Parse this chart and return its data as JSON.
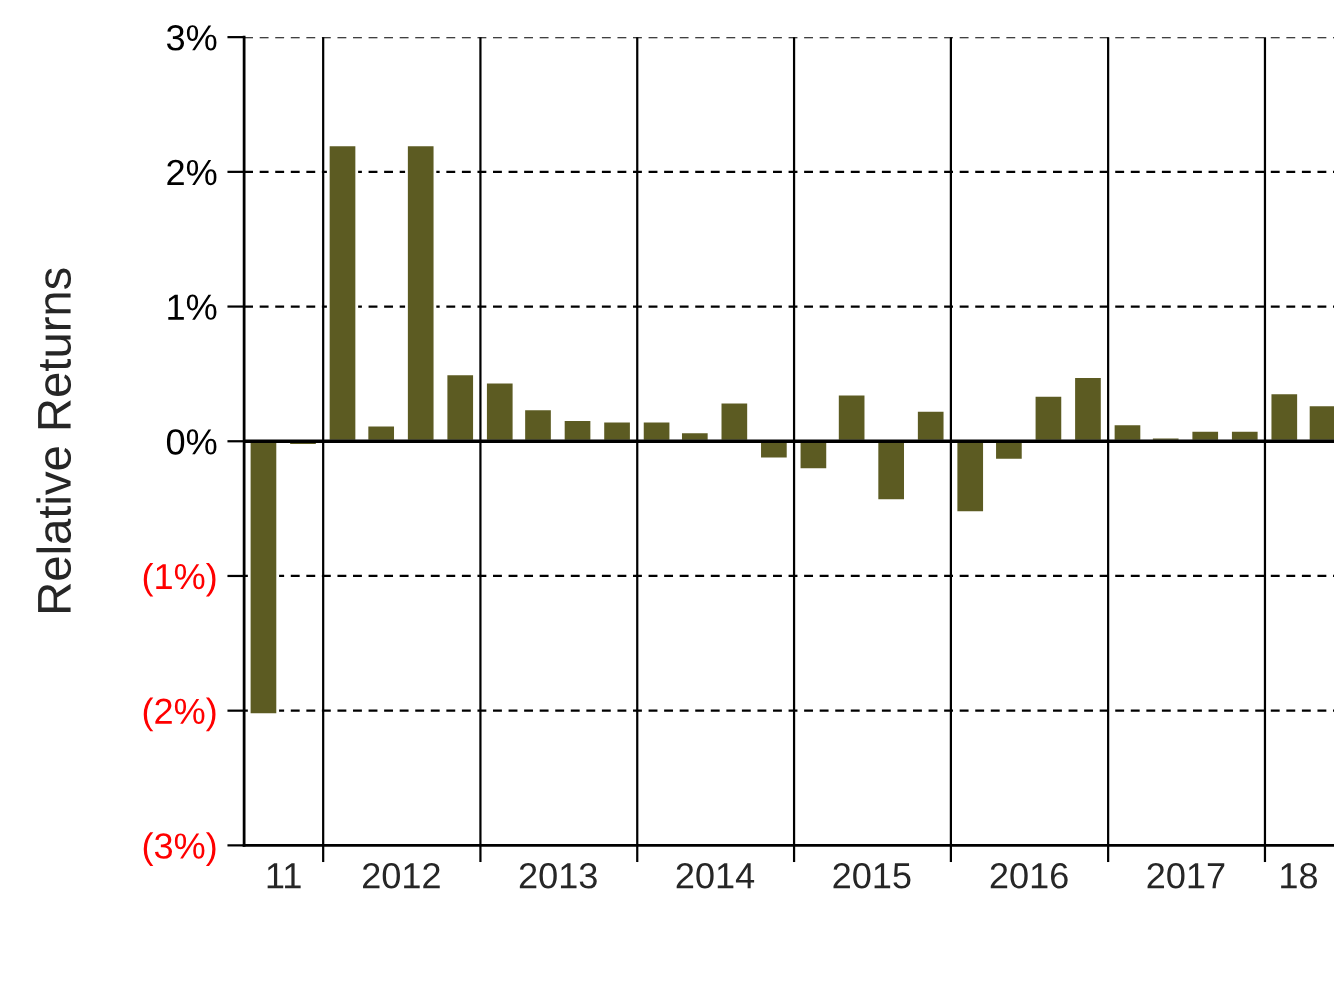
{
  "chart_data": {
    "type": "bar",
    "ylabel": "Relative Returns",
    "x": [
      "2011-08-15",
      "2011-11-15",
      "2012-02-15",
      "2012-05-15",
      "2012-08-15",
      "2012-11-15",
      "2013-02-15",
      "2013-05-15",
      "2013-08-15",
      "2013-11-15",
      "2014-02-15",
      "2014-05-15",
      "2014-08-15",
      "2014-11-15",
      "2015-02-15",
      "2015-05-15",
      "2015-08-15",
      "2015-11-15",
      "2016-02-15",
      "2016-05-15",
      "2016-08-15",
      "2016-11-15",
      "2017-02-15",
      "2017-05-15",
      "2017-08-15",
      "2017-11-15",
      "2018-02-15",
      "2018-05-15"
    ],
    "values": [
      -2.03,
      -0.03,
      2.2,
      0.12,
      2.2,
      0.5,
      0.44,
      0.24,
      0.16,
      0.15,
      0.15,
      0.07,
      0.29,
      -0.13,
      -0.21,
      0.35,
      -0.44,
      0.23,
      -0.53,
      -0.14,
      0.34,
      0.48,
      0.13,
      0.03,
      0.08,
      0.08,
      0.36,
      0.27
    ],
    "color": "#5c5b22",
    "xlim": [
      "2011-07-01",
      "2018-06-20"
    ],
    "xticks": [
      {
        "value": "2011-10-01",
        "label": "11"
      },
      {
        "value": "2012-01-01",
        "label": null
      },
      {
        "value": "2012-07-01",
        "label": "2012"
      },
      {
        "value": "2013-01-01",
        "label": null
      },
      {
        "value": "2013-07-01",
        "label": "2013"
      },
      {
        "value": "2014-01-01",
        "label": null
      },
      {
        "value": "2014-07-01",
        "label": "2014"
      },
      {
        "value": "2015-01-01",
        "label": null
      },
      {
        "value": "2015-07-01",
        "label": "2015"
      },
      {
        "value": "2016-01-01",
        "label": null
      },
      {
        "value": "2016-07-01",
        "label": "2016"
      },
      {
        "value": "2017-01-01",
        "label": null
      },
      {
        "value": "2017-07-01",
        "label": "2017"
      },
      {
        "value": "2018-01-01",
        "label": null
      },
      {
        "value": "2018-03-20",
        "label": "18"
      }
    ],
    "ylim": [
      -3,
      3
    ],
    "yticks": [
      {
        "value": -3,
        "label": "(3%)"
      },
      {
        "value": -2,
        "label": "(2%)"
      },
      {
        "value": -1,
        "label": "(1%)"
      },
      {
        "value": 0,
        "label": "0%"
      },
      {
        "value": 1,
        "label": "1%"
      },
      {
        "value": 2,
        "label": "2%"
      },
      {
        "value": 3,
        "label": "3%"
      }
    ],
    "ref_lines": [
      {
        "axis": "y",
        "value": 0,
        "color": "#000000",
        "line_style": "solid"
      }
    ],
    "grid": true
  }
}
